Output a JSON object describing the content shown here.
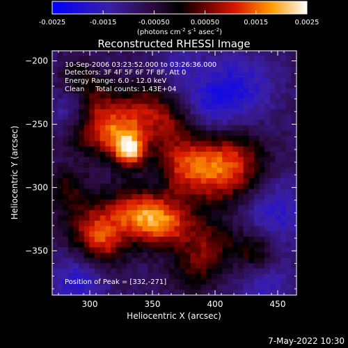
{
  "chart_data": {
    "type": "heatmap",
    "title": "Reconstructed RHESSI Image",
    "xlabel": "Heliocentric X (arcsec)",
    "ylabel": "Heliocentric Y (arcsec)",
    "xlim": [
      270,
      465
    ],
    "ylim": [
      -385,
      -192
    ],
    "xticks": [
      300,
      350,
      400,
      450
    ],
    "yticks": [
      -200,
      -250,
      -300,
      -350
    ],
    "colorbar": {
      "range": [
        -0.0025,
        0.0025
      ],
      "ticks": [
        "-0.0025",
        "-0.0015",
        "-0.00050",
        "0.00050",
        "0.0015",
        "0.0025"
      ],
      "unit_prefix": "(photons cm",
      "unit_sup1": "-2",
      "unit_mid1": " s",
      "unit_sup2": "-1",
      "unit_mid2": " asec",
      "unit_sup3": "-2",
      "unit_suffix": ")"
    },
    "annotations": [
      "10-Sep-2006 03:23:52.000 to 03:26:36.000",
      "Detectors: 3F 4F 5F 6F 7F 8F, Att 0",
      "Energy Range: 6.0 - 12.0 keV",
      "Clean     Total counts: 1.43E+04"
    ],
    "peak_label": "Position of Peak = [332,-271]",
    "peak": [
      332,
      -271
    ]
  },
  "timestamp": "7-May-2022 10:30"
}
